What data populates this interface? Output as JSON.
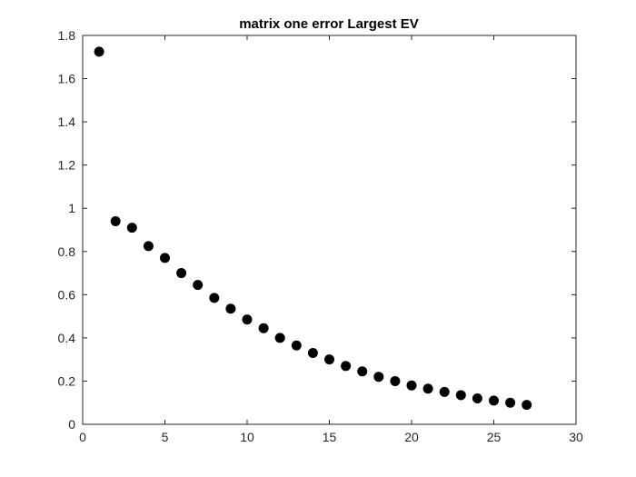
{
  "chart_data": {
    "type": "scatter",
    "title": "matrix one error Largest EV",
    "xlabel": "",
    "ylabel": "",
    "xlim": [
      0,
      30
    ],
    "ylim": [
      0,
      1.8
    ],
    "x_ticks": [
      "0",
      "5",
      "10",
      "15",
      "20",
      "25",
      "30"
    ],
    "y_ticks": [
      "0",
      "0.2",
      "0.4",
      "0.6",
      "0.8",
      "1",
      "1.2",
      "1.4",
      "1.6",
      "1.8"
    ],
    "x_tick_values": [
      0,
      5,
      10,
      15,
      20,
      25,
      30
    ],
    "y_tick_values": [
      0,
      0.2,
      0.4,
      0.6,
      0.8,
      1.0,
      1.2,
      1.4,
      1.6,
      1.8
    ],
    "grid": false,
    "marker_color": "#000000",
    "series": [
      {
        "x": [
          1,
          2,
          3,
          4,
          5,
          6,
          7,
          8,
          9,
          10,
          11,
          12,
          13,
          14,
          15,
          16,
          17,
          18,
          19,
          20,
          21,
          22,
          23,
          24,
          25,
          26,
          27
        ],
        "y": [
          1.725,
          0.94,
          0.91,
          0.825,
          0.77,
          0.7,
          0.645,
          0.585,
          0.535,
          0.485,
          0.445,
          0.4,
          0.365,
          0.33,
          0.3,
          0.27,
          0.245,
          0.22,
          0.2,
          0.18,
          0.165,
          0.15,
          0.135,
          0.12,
          0.11,
          0.1,
          0.09
        ]
      }
    ]
  }
}
